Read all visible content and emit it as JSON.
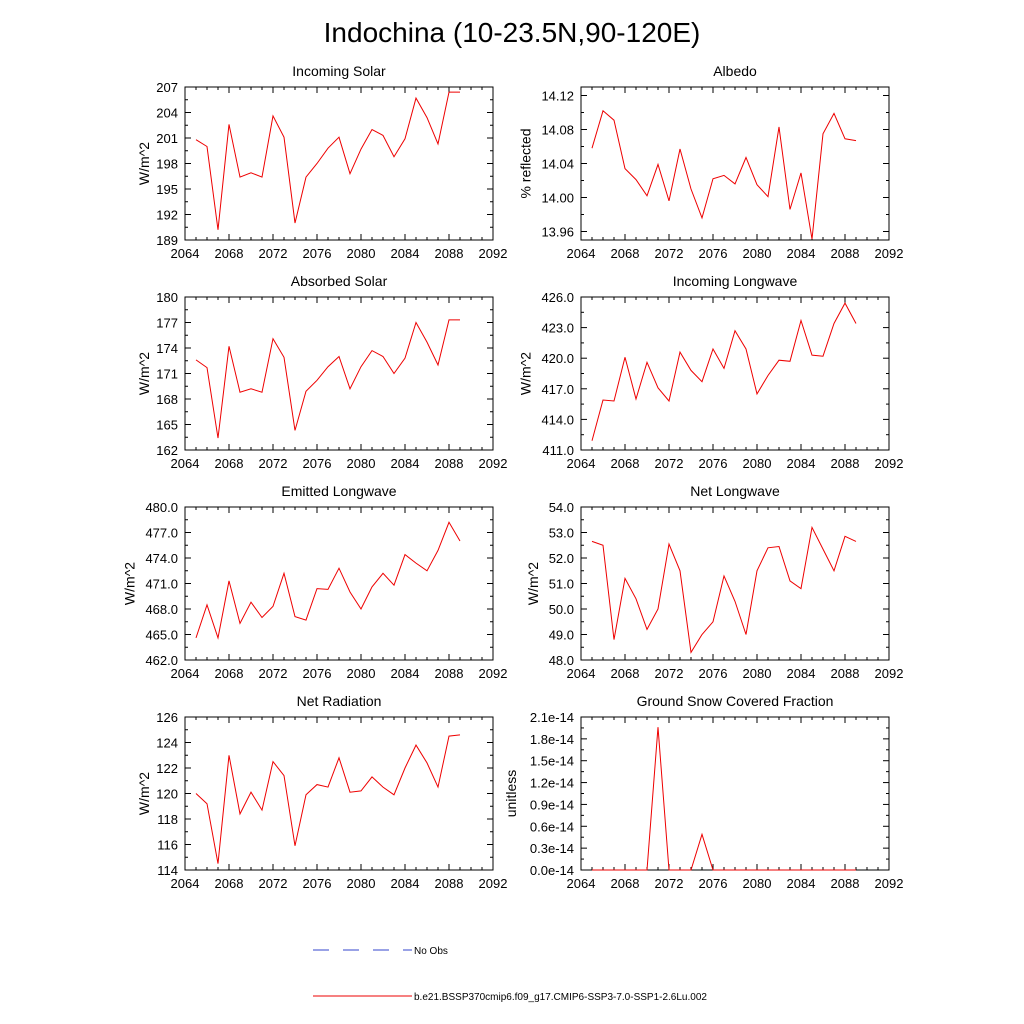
{
  "figure": {
    "title": "Indochina (10-23.5N,90-120E)"
  },
  "legend": {
    "no_obs_label": "No Obs",
    "no_obs_color": "#3344cc",
    "model_label": "b.e21.BSSP370cmip6.f09_g17.CMIP6-SSP3-7.0-SSP1-2.6Lu.002",
    "model_color": "#ee0000"
  },
  "chart_data": [
    {
      "type": "line",
      "title": "Incoming Solar",
      "ylabel": "W/m^2",
      "xlim": [
        2064,
        2092
      ],
      "xticks": [
        "2064",
        "2068",
        "2072",
        "2076",
        "2080",
        "2084",
        "2088",
        "2092"
      ],
      "ylim": [
        189,
        207
      ],
      "yticks": [
        "189",
        "192",
        "195",
        "198",
        "201",
        "204",
        "207"
      ],
      "x": [
        2065,
        2066,
        2067,
        2068,
        2069,
        2070,
        2071,
        2072,
        2073,
        2074,
        2075,
        2076,
        2077,
        2078,
        2079,
        2080,
        2081,
        2082,
        2083,
        2084,
        2085,
        2086,
        2087,
        2088,
        2089
      ],
      "series": [
        {
          "name": "b.e21.BSSP370cmip6.f09_g17.CMIP6-SSP3-7.0-SSP1-2.6Lu.002",
          "values": [
            200.8,
            200.0,
            190.2,
            202.6,
            196.4,
            196.9,
            196.4,
            203.6,
            201.1,
            191.0,
            196.4,
            198.0,
            199.8,
            201.1,
            196.8,
            199.7,
            202.0,
            201.3,
            198.8,
            200.9,
            205.7,
            203.4,
            200.3,
            206.4,
            206.4
          ]
        }
      ]
    },
    {
      "type": "line",
      "title": "Albedo",
      "ylabel": "% reflected",
      "xlim": [
        2064,
        2092
      ],
      "xticks": [
        "2064",
        "2068",
        "2072",
        "2076",
        "2080",
        "2084",
        "2088",
        "2092"
      ],
      "ylim": [
        13.95,
        14.13
      ],
      "yticks": [
        "13.96",
        "14.00",
        "14.04",
        "14.08",
        "14.12"
      ],
      "x": [
        2065,
        2066,
        2067,
        2068,
        2069,
        2070,
        2071,
        2072,
        2073,
        2074,
        2075,
        2076,
        2077,
        2078,
        2079,
        2080,
        2081,
        2082,
        2083,
        2084,
        2085,
        2086,
        2087,
        2088,
        2089
      ],
      "series": [
        {
          "name": "b.e21.BSSP370cmip6.f09_g17.CMIP6-SSP3-7.0-SSP1-2.6Lu.002",
          "values": [
            14.058,
            14.102,
            14.091,
            14.034,
            14.021,
            14.002,
            14.039,
            13.996,
            14.057,
            14.01,
            13.976,
            14.022,
            14.026,
            14.016,
            14.047,
            14.015,
            14.001,
            14.083,
            13.986,
            14.029,
            13.951,
            14.075,
            14.099,
            14.069,
            14.067
          ]
        }
      ]
    },
    {
      "type": "line",
      "title": "Absorbed Solar",
      "ylabel": "W/m^2",
      "xlim": [
        2064,
        2092
      ],
      "xticks": [
        "2064",
        "2068",
        "2072",
        "2076",
        "2080",
        "2084",
        "2088",
        "2092"
      ],
      "ylim": [
        162,
        180
      ],
      "yticks": [
        "162",
        "165",
        "168",
        "171",
        "174",
        "177",
        "180"
      ],
      "x": [
        2065,
        2066,
        2067,
        2068,
        2069,
        2070,
        2071,
        2072,
        2073,
        2074,
        2075,
        2076,
        2077,
        2078,
        2079,
        2080,
        2081,
        2082,
        2083,
        2084,
        2085,
        2086,
        2087,
        2088,
        2089
      ],
      "series": [
        {
          "name": "b.e21.BSSP370cmip6.f09_g17.CMIP6-SSP3-7.0-SSP1-2.6Lu.002",
          "values": [
            172.6,
            171.7,
            163.4,
            174.2,
            168.8,
            169.2,
            168.8,
            175.1,
            172.9,
            164.3,
            168.9,
            170.2,
            171.8,
            173.0,
            169.2,
            171.8,
            173.7,
            173.0,
            171.0,
            172.8,
            177.0,
            174.7,
            172.0,
            177.3,
            177.3
          ]
        }
      ]
    },
    {
      "type": "line",
      "title": "Incoming Longwave",
      "ylabel": "W/m^2",
      "xlim": [
        2064,
        2092
      ],
      "xticks": [
        "2064",
        "2068",
        "2072",
        "2076",
        "2080",
        "2084",
        "2088",
        "2092"
      ],
      "ylim": [
        411,
        426
      ],
      "yticks": [
        "411.0",
        "414.0",
        "417.0",
        "420.0",
        "423.0",
        "426.0"
      ],
      "x": [
        2065,
        2066,
        2067,
        2068,
        2069,
        2070,
        2071,
        2072,
        2073,
        2074,
        2075,
        2076,
        2077,
        2078,
        2079,
        2080,
        2081,
        2082,
        2083,
        2084,
        2085,
        2086,
        2087,
        2088,
        2089
      ],
      "series": [
        {
          "name": "b.e21.BSSP370cmip6.f09_g17.CMIP6-SSP3-7.0-SSP1-2.6Lu.002",
          "values": [
            411.9,
            415.9,
            415.8,
            420.1,
            416.0,
            419.6,
            417.1,
            415.8,
            420.6,
            418.8,
            417.7,
            420.9,
            419.0,
            422.7,
            420.9,
            416.5,
            418.3,
            419.8,
            419.7,
            423.7,
            420.3,
            420.2,
            423.4,
            425.4,
            423.4
          ]
        }
      ]
    },
    {
      "type": "line",
      "title": "Emitted Longwave",
      "ylabel": "W/m^2",
      "xlim": [
        2064,
        2092
      ],
      "xticks": [
        "2064",
        "2068",
        "2072",
        "2076",
        "2080",
        "2084",
        "2088",
        "2092"
      ],
      "ylim": [
        462,
        480
      ],
      "yticks": [
        "462.0",
        "465.0",
        "468.0",
        "471.0",
        "474.0",
        "477.0",
        "480.0"
      ],
      "x": [
        2065,
        2066,
        2067,
        2068,
        2069,
        2070,
        2071,
        2072,
        2073,
        2074,
        2075,
        2076,
        2077,
        2078,
        2079,
        2080,
        2081,
        2082,
        2083,
        2084,
        2085,
        2086,
        2087,
        2088,
        2089
      ],
      "series": [
        {
          "name": "b.e21.BSSP370cmip6.f09_g17.CMIP6-SSP3-7.0-SSP1-2.6Lu.002",
          "values": [
            464.6,
            468.5,
            464.6,
            471.3,
            466.3,
            468.8,
            467.0,
            468.3,
            472.2,
            467.1,
            466.7,
            470.4,
            470.3,
            472.8,
            470.0,
            468.0,
            470.6,
            472.2,
            470.8,
            474.4,
            473.4,
            472.5,
            474.9,
            478.2,
            476.0
          ]
        }
      ]
    },
    {
      "type": "line",
      "title": "Net Longwave",
      "ylabel": "W/m^2",
      "xlim": [
        2064,
        2092
      ],
      "xticks": [
        "2064",
        "2068",
        "2072",
        "2076",
        "2080",
        "2084",
        "2088",
        "2092"
      ],
      "ylim": [
        48,
        54
      ],
      "yticks": [
        "48.0",
        "49.0",
        "50.0",
        "51.0",
        "52.0",
        "53.0",
        "54.0"
      ],
      "x": [
        2065,
        2066,
        2067,
        2068,
        2069,
        2070,
        2071,
        2072,
        2073,
        2074,
        2075,
        2076,
        2077,
        2078,
        2079,
        2080,
        2081,
        2082,
        2083,
        2084,
        2085,
        2086,
        2087,
        2088,
        2089
      ],
      "series": [
        {
          "name": "b.e21.BSSP370cmip6.f09_g17.CMIP6-SSP3-7.0-SSP1-2.6Lu.002",
          "values": [
            52.65,
            52.5,
            48.8,
            51.2,
            50.4,
            49.2,
            50.0,
            52.55,
            51.5,
            48.3,
            49.0,
            49.5,
            51.3,
            50.3,
            49.0,
            51.5,
            52.4,
            52.45,
            51.1,
            50.8,
            53.2,
            52.35,
            51.5,
            52.85,
            52.65
          ]
        }
      ]
    },
    {
      "type": "line",
      "title": "Net Radiation",
      "ylabel": "W/m^2",
      "xlim": [
        2064,
        2092
      ],
      "xticks": [
        "2064",
        "2068",
        "2072",
        "2076",
        "2080",
        "2084",
        "2088",
        "2092"
      ],
      "ylim": [
        114,
        126
      ],
      "yticks": [
        "114",
        "116",
        "118",
        "120",
        "122",
        "124",
        "126"
      ],
      "x": [
        2065,
        2066,
        2067,
        2068,
        2069,
        2070,
        2071,
        2072,
        2073,
        2074,
        2075,
        2076,
        2077,
        2078,
        2079,
        2080,
        2081,
        2082,
        2083,
        2084,
        2085,
        2086,
        2087,
        2088,
        2089
      ],
      "series": [
        {
          "name": "b.e21.BSSP370cmip6.f09_g17.CMIP6-SSP3-7.0-SSP1-2.6Lu.002",
          "values": [
            120.0,
            119.2,
            114.5,
            123.0,
            118.4,
            120.1,
            118.7,
            122.5,
            121.4,
            115.9,
            119.9,
            120.7,
            120.5,
            122.8,
            120.1,
            120.2,
            121.3,
            120.5,
            119.9,
            122.0,
            123.8,
            122.4,
            120.5,
            124.5,
            124.6
          ]
        }
      ]
    },
    {
      "type": "line",
      "title": "Ground Snow Covered Fraction",
      "ylabel": "unitless",
      "xlim": [
        2064,
        2092
      ],
      "xticks": [
        "2064",
        "2068",
        "2072",
        "2076",
        "2080",
        "2084",
        "2088",
        "2092"
      ],
      "ylim": [
        0,
        2.1e-14
      ],
      "yticks": [
        "0.0e-14",
        "0.3e-14",
        "0.6e-14",
        "0.9e-14",
        "1.2e-14",
        "1.5e-14",
        "1.8e-14",
        "2.1e-14"
      ],
      "x": [
        2065,
        2066,
        2067,
        2068,
        2069,
        2070,
        2071,
        2072,
        2073,
        2074,
        2075,
        2076,
        2077,
        2078,
        2079,
        2080,
        2081,
        2082,
        2083,
        2084,
        2085,
        2086,
        2087,
        2088,
        2089
      ],
      "series": [
        {
          "name": "b.e21.BSSP370cmip6.f09_g17.CMIP6-SSP3-7.0-SSP1-2.6Lu.002",
          "values": [
            0,
            0,
            0,
            0,
            0,
            0,
            1.96e-14,
            0,
            0,
            0,
            4.9e-15,
            0,
            0,
            0,
            0,
            0,
            0,
            0,
            0,
            0,
            0,
            0,
            0,
            0,
            0
          ]
        }
      ]
    }
  ]
}
